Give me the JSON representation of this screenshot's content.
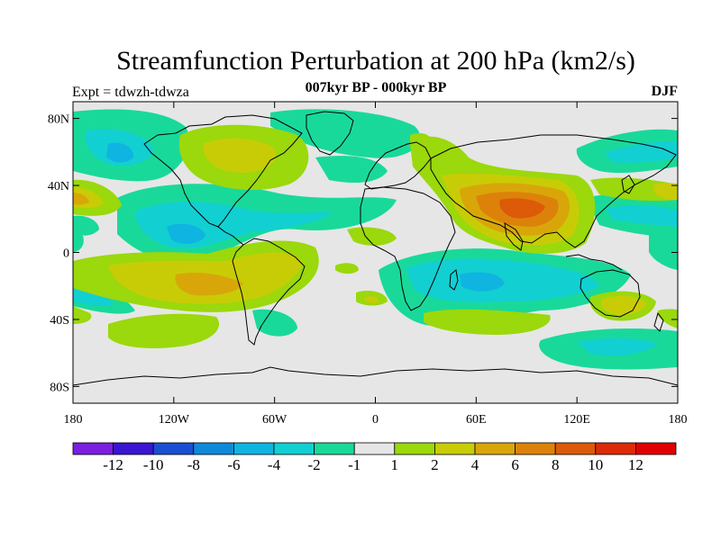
{
  "header": {
    "title": "Streamfunction Perturbation at 200 hPa (km2/s)",
    "left_label": "Expt = tdwzh-tdwza",
    "center_label": "007kyr BP - 000kyr BP",
    "right_label": "DJF"
  },
  "map": {
    "lon_range": [
      -180,
      180
    ],
    "lat_range": [
      -90,
      90
    ],
    "background_color": "#e6e6e6",
    "lat_ticks": [
      {
        "value": 80,
        "label": "80N"
      },
      {
        "value": 40,
        "label": "40N"
      },
      {
        "value": 0,
        "label": "0"
      },
      {
        "value": -40,
        "label": "40S"
      },
      {
        "value": -80,
        "label": "80S"
      }
    ],
    "lon_ticks": [
      {
        "value": -180,
        "label": "180"
      },
      {
        "value": -120,
        "label": "120W"
      },
      {
        "value": -60,
        "label": "60W"
      },
      {
        "value": 0,
        "label": "0"
      },
      {
        "value": 60,
        "label": "60E"
      },
      {
        "value": 120,
        "label": "120E"
      },
      {
        "value": 180,
        "label": "180"
      }
    ]
  },
  "colorbar": {
    "colors": [
      "#7c1fe0",
      "#3a16d2",
      "#1a4fd4",
      "#0f8ad8",
      "#0fb4e0",
      "#12cfd2",
      "#19d99a",
      "#e6e6e6",
      "#9bd80c",
      "#c8cc07",
      "#d9a60a",
      "#dc820a",
      "#dd5a08",
      "#dd2a0a",
      "#e00000"
    ],
    "labels": [
      "-12",
      "-10",
      "-8",
      "-6",
      "-4",
      "-2",
      "-1",
      "1",
      "2",
      "4",
      "6",
      "8",
      "10",
      "12"
    ]
  }
}
